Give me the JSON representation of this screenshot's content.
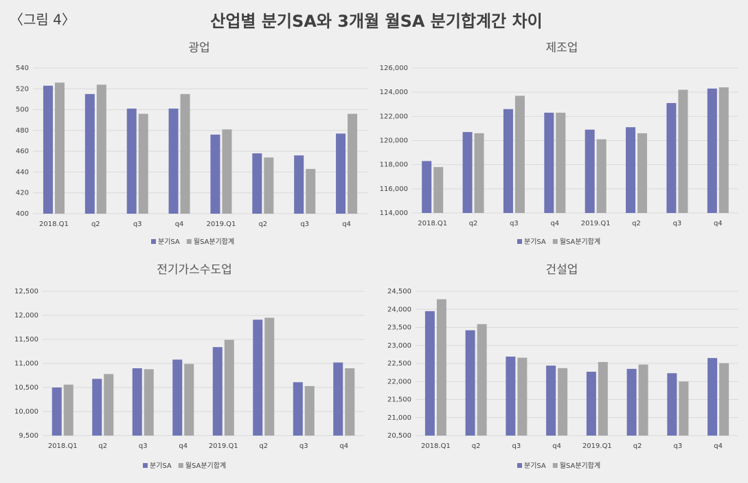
{
  "figure_label": "〈그림 4〉",
  "title": "산업별 분기SA와 3개월 월SA 분기합계간 차이",
  "chart_data": [
    {
      "type": "bar",
      "title": "광업",
      "categories": [
        "2018.Q1",
        "q2",
        "q3",
        "q4",
        "2019.Q1",
        "q2",
        "q3",
        "q4"
      ],
      "series": [
        {
          "name": "분기SA",
          "color": "#6f74b5",
          "values": [
            523,
            515,
            501,
            501,
            476,
            458,
            456,
            477
          ]
        },
        {
          "name": "월SA분기합계",
          "color": "#a6a6a6",
          "values": [
            526,
            524,
            496,
            515,
            481,
            454,
            443,
            496
          ]
        }
      ],
      "ylim": [
        400,
        540
      ],
      "yticks": [
        400,
        420,
        440,
        460,
        480,
        500,
        520,
        540
      ],
      "grid": true,
      "legend": "bottom"
    },
    {
      "type": "bar",
      "title": "제조업",
      "categories": [
        "2018.Q1",
        "q2",
        "q3",
        "q4",
        "2019.Q1",
        "q2",
        "q3",
        "q4"
      ],
      "series": [
        {
          "name": "분기SA",
          "color": "#6f74b5",
          "values": [
            118300,
            120700,
            122600,
            122300,
            120900,
            121100,
            123100,
            124300
          ]
        },
        {
          "name": "월SA분기합계",
          "color": "#a6a6a6",
          "values": [
            117800,
            120600,
            123700,
            122300,
            120100,
            120600,
            124200,
            124400
          ]
        }
      ],
      "ylim": [
        114000,
        126000
      ],
      "yticks": [
        {
          "value": 114000,
          "label": "114,000"
        },
        {
          "value": 116000,
          "label": "116,000"
        },
        {
          "value": 118000,
          "label": "118,000"
        },
        {
          "value": 120000,
          "label": "120,000"
        },
        {
          "value": 122000,
          "label": "122,000"
        },
        {
          "value": 124000,
          "label": "124,000"
        },
        {
          "value": 126000,
          "label": "126,000"
        }
      ],
      "grid": true,
      "legend": "bottom"
    },
    {
      "type": "bar",
      "title": "전기가스수도업",
      "categories": [
        "2018.Q1",
        "q2",
        "q3",
        "q4",
        "2019.Q1",
        "q2",
        "q3",
        "q4"
      ],
      "series": [
        {
          "name": "분기SA",
          "color": "#6f74b5",
          "values": [
            10500,
            10680,
            10900,
            11080,
            11340,
            11910,
            10610,
            11020
          ]
        },
        {
          "name": "월SA분기합계",
          "color": "#a6a6a6",
          "values": [
            10560,
            10780,
            10880,
            10990,
            11490,
            11950,
            10530,
            10900
          ]
        }
      ],
      "ylim": [
        9500,
        12500
      ],
      "yticks": [
        {
          "value": 9500,
          "label": "9,500"
        },
        {
          "value": 10000,
          "label": "10,000"
        },
        {
          "value": 10500,
          "label": "10,500"
        },
        {
          "value": 11000,
          "label": "11,000"
        },
        {
          "value": 11500,
          "label": "11,500"
        },
        {
          "value": 12000,
          "label": "12,000"
        },
        {
          "value": 12500,
          "label": "12,500"
        }
      ],
      "grid": true,
      "legend": "bottom"
    },
    {
      "type": "bar",
      "title": "건설업",
      "categories": [
        "2018.Q1",
        "q2",
        "q3",
        "q4",
        "2019.Q1",
        "q2",
        "q3",
        "q4"
      ],
      "series": [
        {
          "name": "분기SA",
          "color": "#6f74b5",
          "values": [
            23950,
            23420,
            22690,
            22440,
            22270,
            22350,
            22230,
            22650
          ]
        },
        {
          "name": "월SA분기합계",
          "color": "#a6a6a6",
          "values": [
            24280,
            23590,
            22660,
            22370,
            22540,
            22470,
            22000,
            22510
          ]
        }
      ],
      "ylim": [
        20500,
        24500
      ],
      "yticks": [
        {
          "value": 20500,
          "label": "20,500"
        },
        {
          "value": 21000,
          "label": "21,000"
        },
        {
          "value": 21500,
          "label": "21,500"
        },
        {
          "value": 22000,
          "label": "22,000"
        },
        {
          "value": 22500,
          "label": "22,500"
        },
        {
          "value": 23000,
          "label": "23,000"
        },
        {
          "value": 23500,
          "label": "23,500"
        },
        {
          "value": 24000,
          "label": "24,000"
        },
        {
          "value": 24500,
          "label": "24,500"
        }
      ],
      "grid": true,
      "legend": "bottom"
    }
  ]
}
